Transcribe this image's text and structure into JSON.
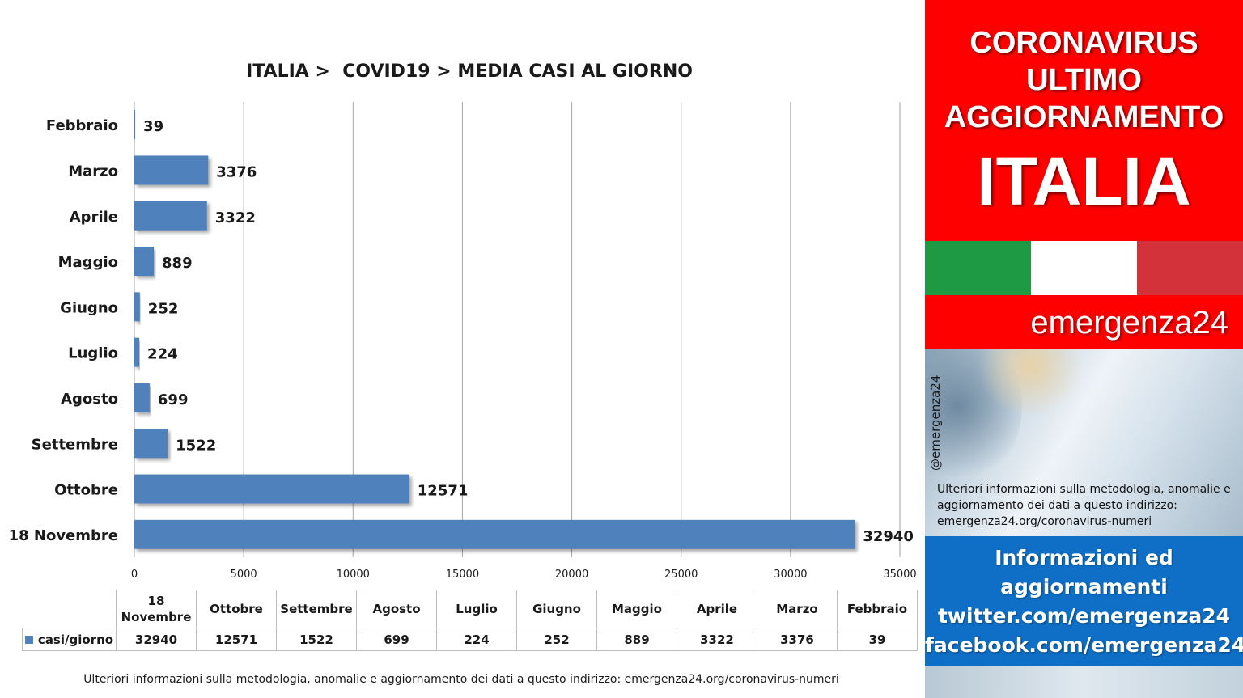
{
  "chart_data": {
    "type": "bar",
    "orientation": "horizontal",
    "title": "ITALIA >  COVID19 > MEDIA CASI AL GIORNO",
    "categories": [
      "Febbraio",
      "Marzo",
      "Aprile",
      "Maggio",
      "Giugno",
      "Luglio",
      "Agosto",
      "Settembre",
      "Ottobre",
      "18 Novembre"
    ],
    "series": [
      {
        "name": "casi/giorno",
        "values": [
          39,
          3376,
          3322,
          889,
          252,
          224,
          699,
          1522,
          12571,
          32940
        ]
      }
    ],
    "xlim": [
      0,
      35000
    ],
    "xticks": [
      "0",
      "5000",
      "10000",
      "15000",
      "20000",
      "25000",
      "30000",
      "35000"
    ],
    "grid": "vertical",
    "bar_color": "#4f81bd",
    "data_table": {
      "legend_label": "casi/giorno",
      "columns": [
        "18 Novembre",
        "Ottobre",
        "Settembre",
        "Agosto",
        "Luglio",
        "Giugno",
        "Maggio",
        "Aprile",
        "Marzo",
        "Febbraio"
      ],
      "values": [
        "32940",
        "12571",
        "1522",
        "699",
        "224",
        "252",
        "889",
        "3322",
        "3376",
        "39"
      ]
    }
  },
  "footnote": "Ulteriori informazioni sulla metodologia, anomalie e aggiornamento dei dati a questo indirizzo: emergenza24.org/coronavirus-numeri",
  "sidebar": {
    "line1": "CORONAVIRUS",
    "line2": "ULTIMO",
    "line3": "AGGIORNAMENTO",
    "line4": "ITALIA",
    "flag_colors": [
      "#1e9a45",
      "#ffffff",
      "#d4323a"
    ],
    "brand": "emergenza24",
    "handle": "@emergenza24",
    "note": "Ulteriori informazioni sulla metodologia, anomalie e aggiornamento dei dati a questo indirizzo: emergenza24.org/coronavirus-numeri",
    "info_line1": "Informazioni ed",
    "info_line2": "aggiornamenti",
    "info_line3": "twitter.com/emergenza24",
    "info_line4": "facebook.com/emergenza24"
  }
}
